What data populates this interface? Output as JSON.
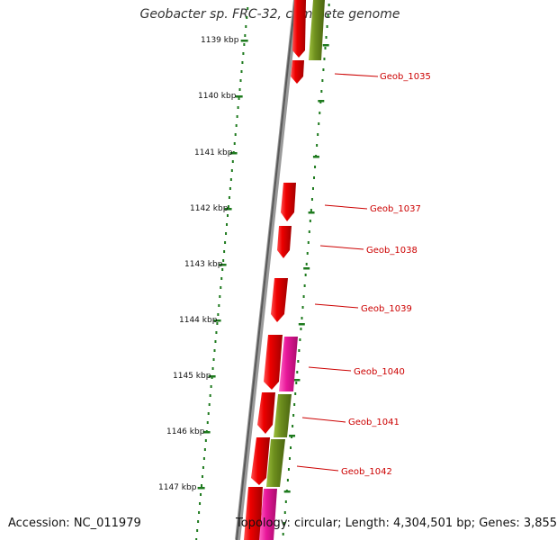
{
  "title": "Geobacter sp. FRC-32, complete genome",
  "accession": "Accession: NC_011979",
  "topology": "Topology: circular; Length: 4,304,501 bp; Genes: 3,855",
  "colors": {
    "backbone": "#7f7f7f",
    "tick": "#1e7a1e",
    "gene_red": "#ee0000",
    "gene_pink": "#e8179a",
    "gene_olive": "#6e8f1e",
    "label": "#cc0000"
  },
  "scale_ticks": [
    "1139 kbp",
    "1140 kbp",
    "1141 kbp",
    "1142 kbp",
    "1143 kbp",
    "1144 kbp",
    "1145 kbp",
    "1146 kbp",
    "1147 kbp"
  ],
  "gene_labels": [
    "Geob_1035",
    "Geob_1037",
    "Geob_1038",
    "Geob_1039",
    "Geob_1040",
    "Geob_1041",
    "Geob_1042"
  ]
}
